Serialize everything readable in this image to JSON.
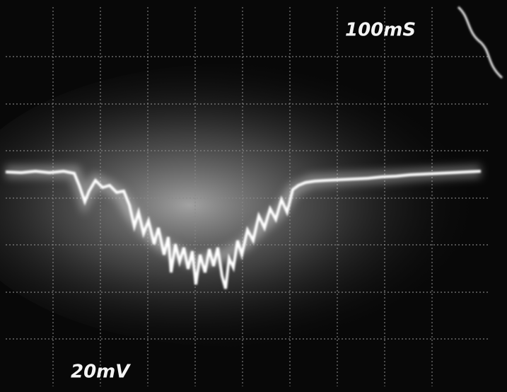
{
  "display": {
    "timebase": "100mS",
    "voltage_scale": "20mV"
  }
}
